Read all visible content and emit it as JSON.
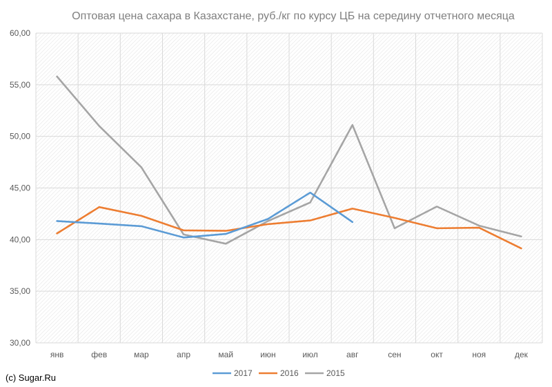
{
  "chart_data": {
    "type": "line",
    "title": "Оптовая цена сахара в Казахстане, руб./кг по курсу ЦБ на середину отчетного месяца",
    "xlabel": "",
    "ylabel": "",
    "categories": [
      "янв",
      "фев",
      "мар",
      "апр",
      "май",
      "июн",
      "июл",
      "авг",
      "сен",
      "окт",
      "ноя",
      "дек"
    ],
    "ylim": [
      30,
      60
    ],
    "yticks": [
      "30,00",
      "35,00",
      "40,00",
      "45,00",
      "50,00",
      "55,00",
      "60,00"
    ],
    "ytick_values": [
      30,
      35,
      40,
      45,
      50,
      55,
      60
    ],
    "grid": true,
    "legend_position": "bottom",
    "series": [
      {
        "name": "2017",
        "color": "#5b9bd5",
        "values": [
          41.8,
          41.55,
          41.3,
          40.2,
          40.55,
          42.0,
          44.55,
          41.7,
          null,
          null,
          null,
          null
        ]
      },
      {
        "name": "2016",
        "color": "#ed7d31",
        "values": [
          40.6,
          43.15,
          42.3,
          40.9,
          40.85,
          41.5,
          41.85,
          43.0,
          42.1,
          41.1,
          41.15,
          39.15
        ]
      },
      {
        "name": "2015",
        "color": "#a5a5a5",
        "values": [
          55.8,
          51.0,
          47.0,
          40.5,
          39.6,
          41.8,
          43.6,
          51.1,
          41.1,
          43.2,
          41.35,
          40.3
        ]
      }
    ]
  },
  "source_label": "(c) Sugar.Ru"
}
